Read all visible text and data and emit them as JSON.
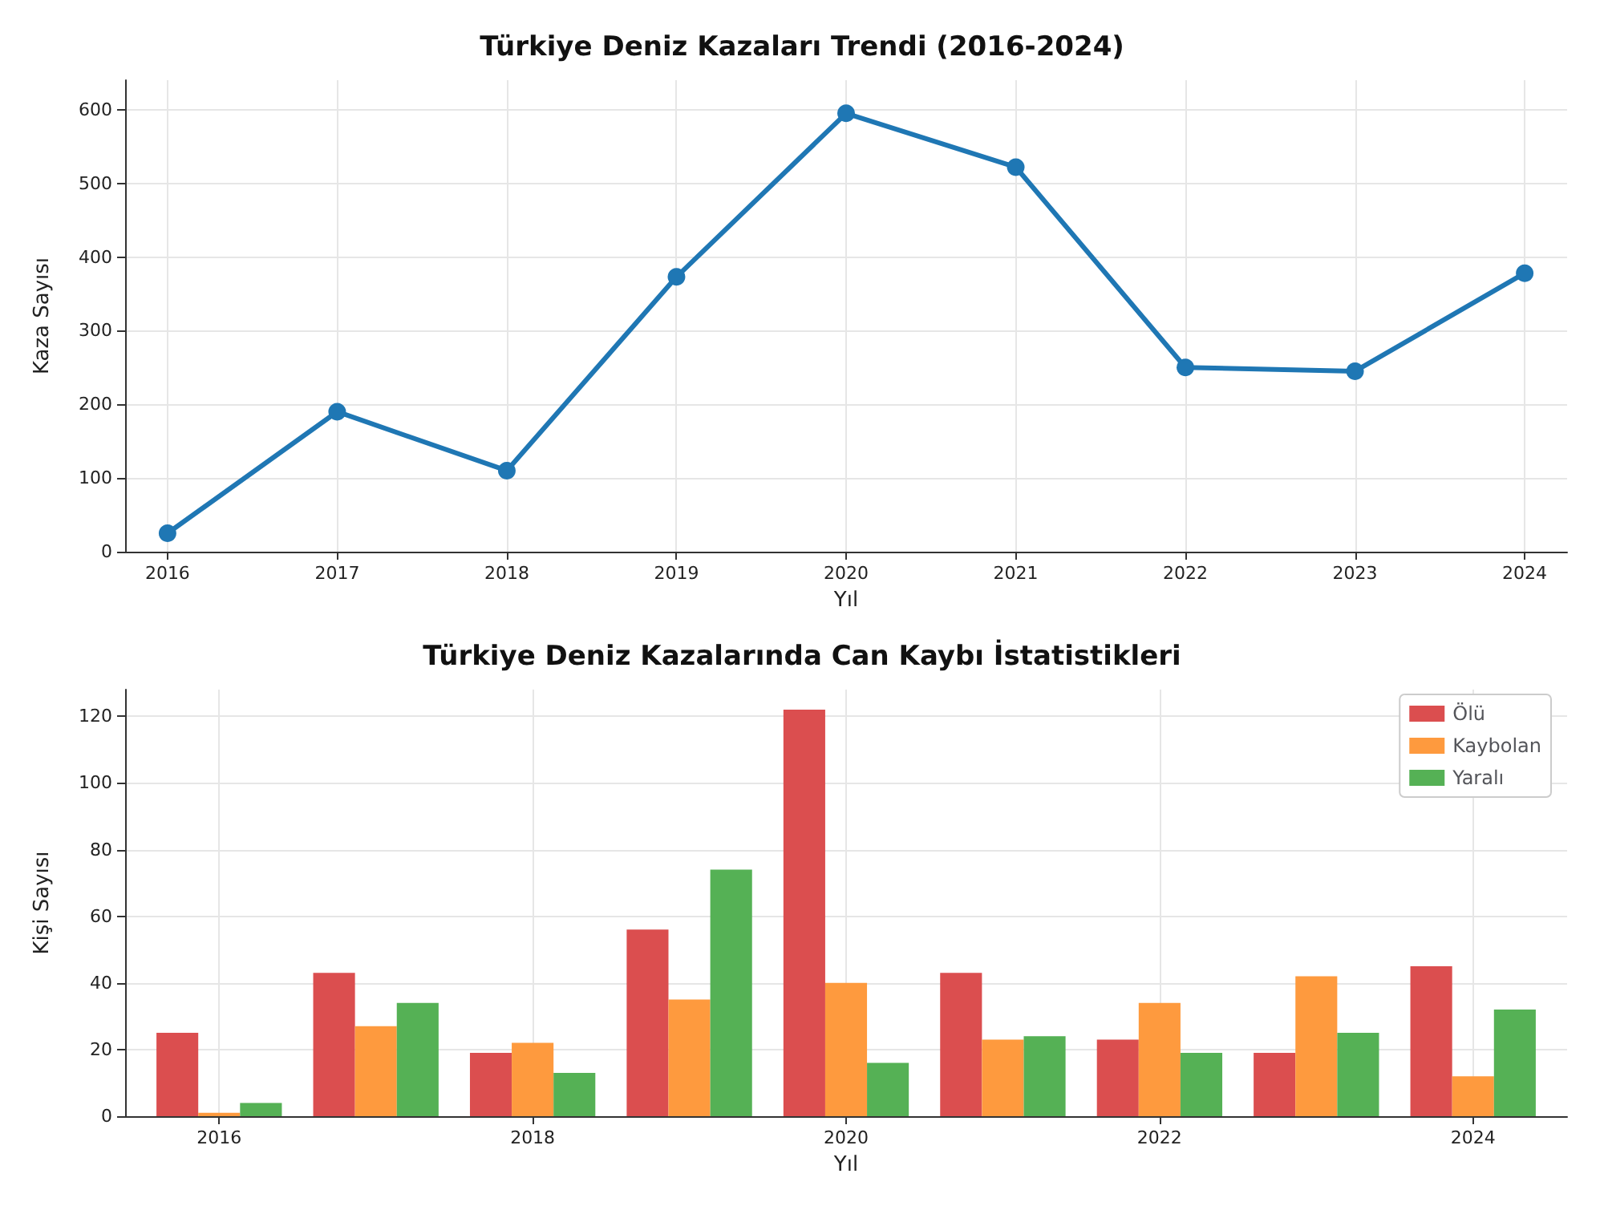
{
  "chart_data": [
    {
      "type": "line",
      "title": "Türkiye Deniz Kazaları Trendi (2016-2024)",
      "xlabel": "Yıl",
      "ylabel": "Kaza Sayısı",
      "x": [
        2016,
        2017,
        2018,
        2019,
        2020,
        2021,
        2022,
        2023,
        2024
      ],
      "series": [
        {
          "color": "#1f77b4",
          "values": [
            25,
            190,
            110,
            373,
            595,
            522,
            250,
            245,
            378
          ]
        }
      ],
      "xlim": [
        2015.75,
        2024.25
      ],
      "xticks": [
        2016,
        2017,
        2018,
        2019,
        2020,
        2021,
        2022,
        2023,
        2024
      ],
      "ylim": [
        0,
        640
      ],
      "yticks": [
        0,
        100,
        200,
        300,
        400,
        500,
        600
      ],
      "grid": true,
      "marker": "circle",
      "line_style": "solid"
    },
    {
      "type": "bar",
      "title": "Türkiye Deniz Kazalarında Can Kaybı İstatistikleri",
      "xlabel": "Yıl",
      "ylabel": "Kişi Sayısı",
      "x": [
        2016,
        2017,
        2018,
        2019,
        2020,
        2021,
        2022,
        2023,
        2024
      ],
      "series": [
        {
          "name": "Ölü",
          "color": "#db4e4f",
          "values": [
            25,
            43,
            19,
            56,
            122,
            43,
            23,
            19,
            45
          ]
        },
        {
          "name": "Kaybolan",
          "color": "#fe9a3e",
          "values": [
            1,
            27,
            22,
            35,
            40,
            23,
            34,
            42,
            12
          ]
        },
        {
          "name": "Yaralı",
          "color": "#55b155",
          "values": [
            4,
            34,
            13,
            74,
            16,
            24,
            19,
            25,
            32
          ]
        }
      ],
      "xlim": [
        2015.4,
        2024.6
      ],
      "xticks": [
        2016,
        2018,
        2020,
        2022,
        2024
      ],
      "ylim": [
        0,
        128
      ],
      "yticks": [
        0,
        20,
        40,
        60,
        80,
        100,
        120
      ],
      "grid": true,
      "legend": "top right"
    }
  ]
}
